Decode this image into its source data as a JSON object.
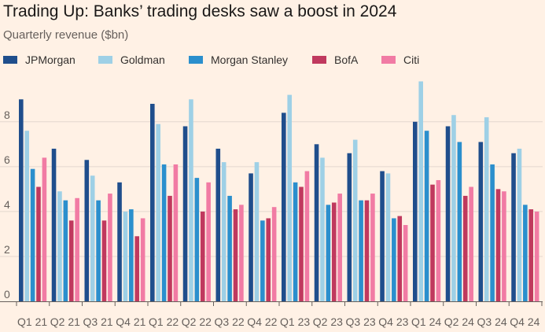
{
  "title": "Trading Up: Banks’ trading desks saw a boost in 2024",
  "subtitle": "Quarterly revenue ($bn)",
  "chart_data": {
    "type": "bar",
    "title": "Trading Up: Banks’ trading desks saw a boost in 2024",
    "subtitle": "Quarterly revenue ($bn)",
    "categories": [
      "Q1 21",
      "Q2 21",
      "Q3 21",
      "Q4 21",
      "Q1 22",
      "Q2 22",
      "Q3 22",
      "Q4 22",
      "Q1 23",
      "Q2 23",
      "Q3 23",
      "Q4 23",
      "Q1 24",
      "Q2 24",
      "Q3 24",
      "Q4 24"
    ],
    "ylim": [
      0,
      9.5
    ],
    "yticks": [
      0,
      2,
      4,
      6,
      8
    ],
    "grid": true,
    "legend": "top",
    "series": [
      {
        "name": "JPMorgan",
        "color": "#1f4e8c",
        "values": [
          9.0,
          6.8,
          6.3,
          5.3,
          8.8,
          7.8,
          6.8,
          5.7,
          8.4,
          7.0,
          6.6,
          5.8,
          8.0,
          7.8,
          7.1,
          6.6
        ]
      },
      {
        "name": "Goldman",
        "color": "#9ed0e6",
        "values": [
          7.6,
          4.9,
          5.6,
          4.0,
          7.9,
          9.0,
          6.2,
          6.2,
          9.2,
          6.4,
          7.2,
          5.7,
          9.8,
          8.3,
          8.2,
          6.8
        ]
      },
      {
        "name": "Morgan Stanley",
        "color": "#2b8fcd",
        "values": [
          5.9,
          4.5,
          4.5,
          4.1,
          6.1,
          5.5,
          4.7,
          3.6,
          5.3,
          4.3,
          4.5,
          3.7,
          7.6,
          7.1,
          6.1,
          4.3
        ]
      },
      {
        "name": "BofA",
        "color": "#c0395e",
        "values": [
          5.1,
          3.6,
          3.6,
          2.9,
          4.7,
          4.0,
          4.1,
          3.7,
          5.1,
          4.4,
          4.5,
          3.8,
          5.2,
          4.7,
          5.0,
          4.1
        ]
      },
      {
        "name": "Citi",
        "color": "#f17ba4",
        "values": [
          6.4,
          4.6,
          4.8,
          3.7,
          6.1,
          5.3,
          4.3,
          4.2,
          5.8,
          4.8,
          4.8,
          3.4,
          5.4,
          5.1,
          4.9,
          4.0
        ]
      }
    ]
  }
}
